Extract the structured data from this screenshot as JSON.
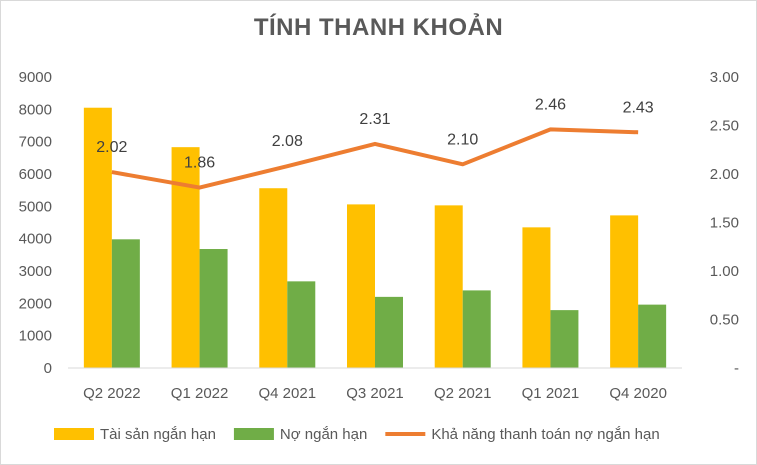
{
  "chart_data": {
    "type": "bar",
    "title": "TÍNH THANH KHOẢN",
    "categories": [
      "Q2 2022",
      "Q1 2022",
      "Q4 2021",
      "Q3 2021",
      "Q2 2021",
      "Q1 2021",
      "Q4 2020"
    ],
    "series": [
      {
        "name": "Tài sản ngắn hạn",
        "type": "bar",
        "axis": "left",
        "color": "#FFC000",
        "values": [
          8050,
          6830,
          5560,
          5060,
          5030,
          4350,
          4720
        ]
      },
      {
        "name": "Nợ ngắn hạn",
        "type": "bar",
        "axis": "left",
        "color": "#70AD47",
        "values": [
          3980,
          3680,
          2680,
          2200,
          2400,
          1790,
          1960
        ]
      },
      {
        "name": "Khả năng thanh toán nợ ngắn hạn",
        "type": "line",
        "axis": "right",
        "color": "#ED7D31",
        "values": [
          2.02,
          1.86,
          2.08,
          2.31,
          2.1,
          2.46,
          2.43
        ],
        "labels": [
          "2.02",
          "1.86",
          "2.08",
          "2.31",
          "2.10",
          "2.46",
          "2.43"
        ]
      }
    ],
    "y_left": {
      "ylim": [
        0,
        9000
      ],
      "ticks": [
        "0",
        "1000",
        "2000",
        "3000",
        "4000",
        "5000",
        "6000",
        "7000",
        "8000",
        "9000"
      ]
    },
    "y_right": {
      "ylim": [
        0,
        3
      ],
      "ticks": [
        "-",
        "0.50",
        "1.00",
        "1.50",
        "2.00",
        "2.50",
        "3.00"
      ]
    },
    "grid": false,
    "legend_position": "bottom"
  }
}
